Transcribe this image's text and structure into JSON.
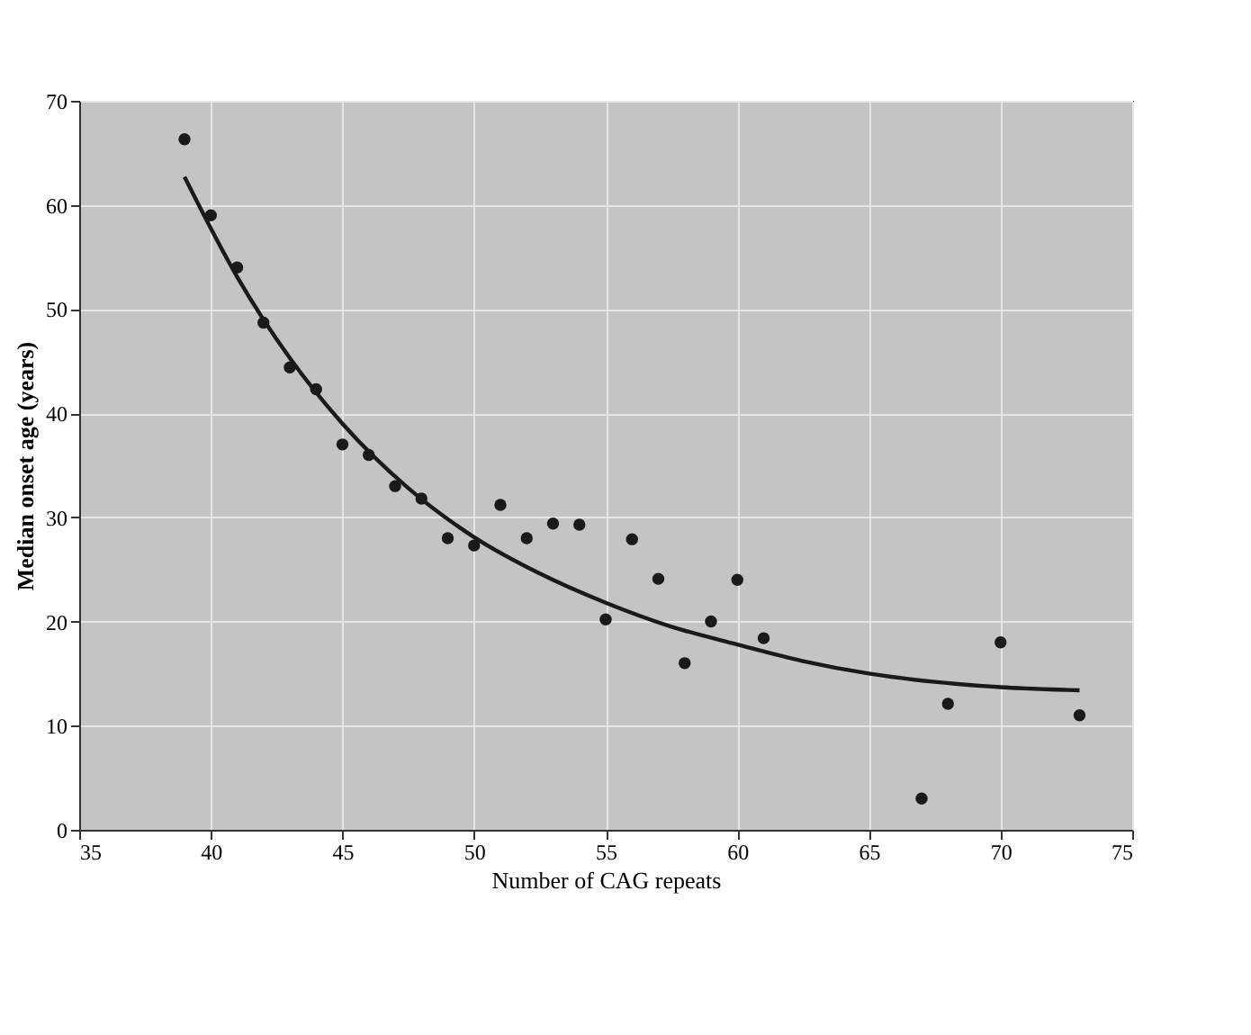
{
  "chart_data": {
    "type": "scatter",
    "xlabel": "Number of CAG repeats",
    "ylabel": "Median onset age (years)",
    "xlim": [
      35,
      75
    ],
    "xticks": [
      35,
      40,
      45,
      50,
      55,
      60,
      65,
      70,
      75
    ],
    "ylim": [
      0,
      70
    ],
    "yticks": [
      0,
      10,
      20,
      30,
      40,
      50,
      60,
      70
    ],
    "grid": true,
    "marker": "circle",
    "series": [
      {
        "color": "#1a1a1a",
        "x": [
          39,
          40,
          41,
          42,
          43,
          44,
          45,
          46,
          47,
          48,
          49,
          50,
          51,
          52,
          53,
          54,
          55,
          56,
          57,
          58,
          59,
          60,
          61,
          67,
          68,
          70,
          73
        ],
        "values": [
          66.3,
          59,
          54,
          48.7,
          44.4,
          42.3,
          37,
          36,
          33,
          31.8,
          28,
          27.3,
          31.2,
          28,
          29.4,
          29.3,
          20.2,
          27.9,
          24.1,
          16,
          20,
          24,
          18.4,
          3,
          12.1,
          18,
          11
        ]
      },
      {
        "type": "line",
        "color": "#1a1a1a",
        "line_style": "solid",
        "marker": "none",
        "x": [
          39,
          41,
          43,
          45,
          47.5,
          50,
          52.5,
          55,
          57.5,
          60,
          62.5,
          65,
          67.5,
          70,
          73
        ],
        "values": [
          62.7,
          53.1,
          45.3,
          39,
          32.8,
          28.1,
          24.6,
          21.8,
          19.5,
          17.8,
          16.2,
          15,
          14.2,
          13.7,
          13.4
        ]
      }
    ]
  }
}
